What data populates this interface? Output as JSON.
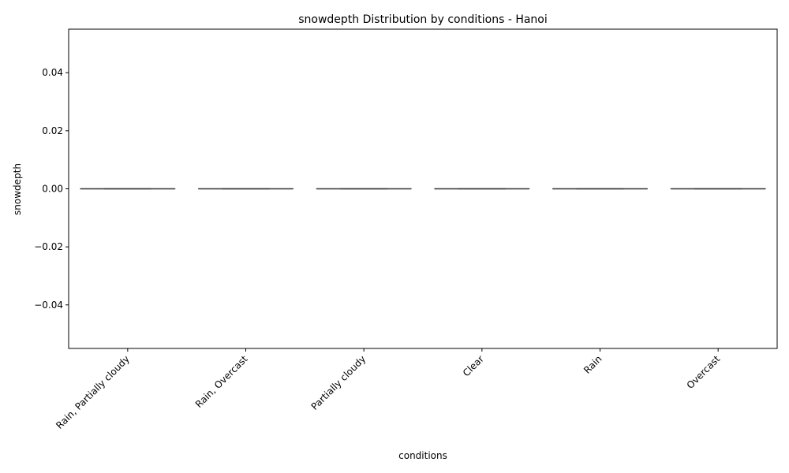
{
  "chart_data": {
    "type": "box",
    "title": "snowdepth Distribution by conditions - Hanoi",
    "xlabel": "conditions",
    "ylabel": "snowdepth",
    "categories": [
      "Rain, Partially cloudy",
      "Rain, Overcast",
      "Partially cloudy",
      "Clear",
      "Rain",
      "Overcast"
    ],
    "series": [
      {
        "boxes": [
          {
            "min": 0,
            "q1": 0,
            "median": 0,
            "q3": 0,
            "max": 0
          },
          {
            "min": 0,
            "q1": 0,
            "median": 0,
            "q3": 0,
            "max": 0
          },
          {
            "min": 0,
            "q1": 0,
            "median": 0,
            "q3": 0,
            "max": 0
          },
          {
            "min": 0,
            "q1": 0,
            "median": 0,
            "q3": 0,
            "max": 0
          },
          {
            "min": 0,
            "q1": 0,
            "median": 0,
            "q3": 0,
            "max": 0
          },
          {
            "min": 0,
            "q1": 0,
            "median": 0,
            "q3": 0,
            "max": 0
          }
        ]
      }
    ],
    "yticks": [
      -0.04,
      -0.02,
      0.0,
      0.02,
      0.04
    ],
    "ytick_labels": [
      "−0.04",
      "−0.02",
      "0.00",
      "0.02",
      "0.04"
    ],
    "ylim": [
      -0.055,
      0.055
    ],
    "grid": false,
    "colors": {
      "box_line": "#3f3f3f",
      "axis": "#000000",
      "background": "#ffffff"
    }
  }
}
